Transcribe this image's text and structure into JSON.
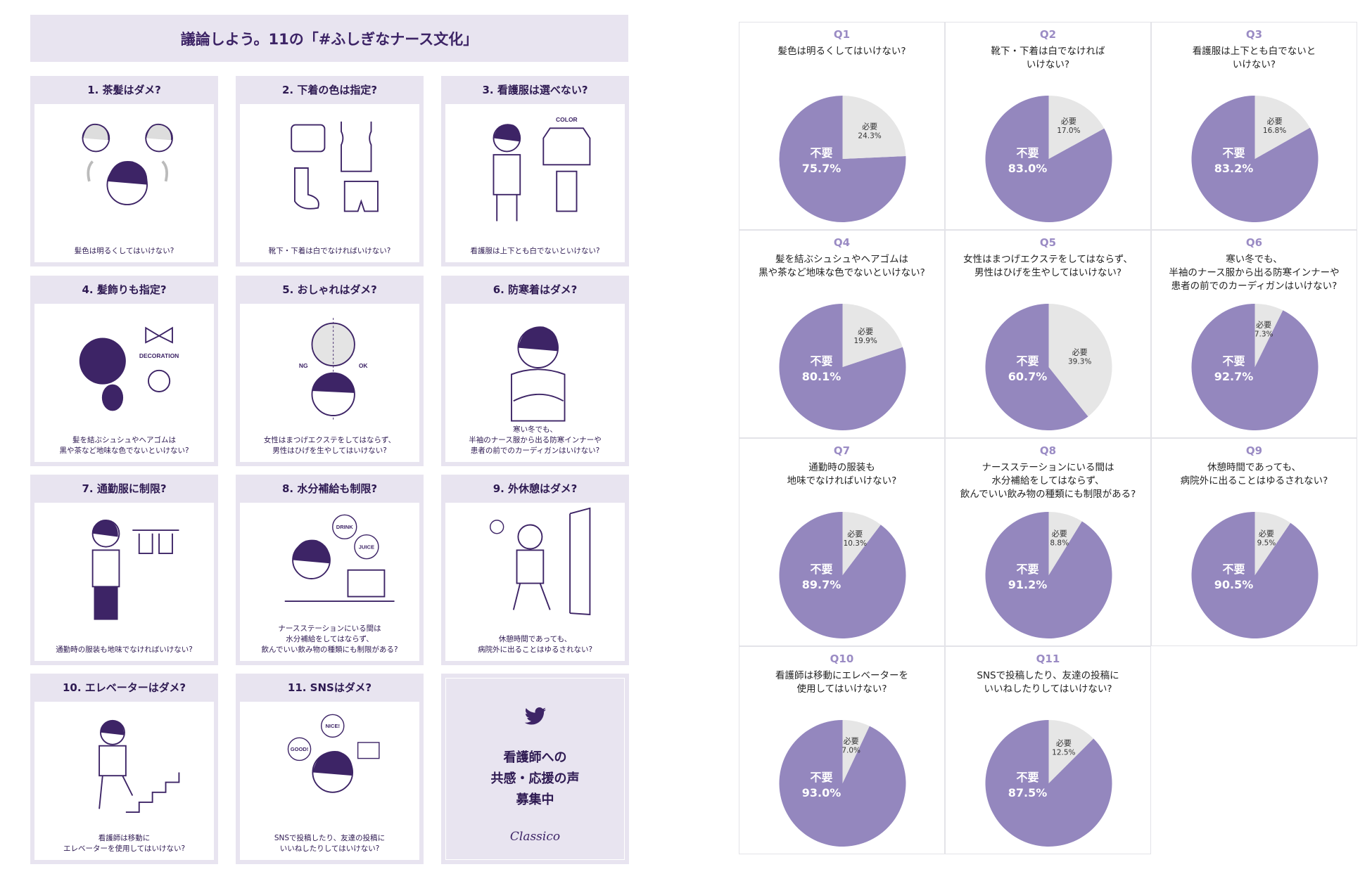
{
  "infographic": {
    "title": "議論しよう。11の「#ふしぎなナース文化」",
    "cards": [
      {
        "title": "1. 茶髪はダメ?",
        "caption": "髪色は明るくしてはいけない?"
      },
      {
        "title": "2. 下着の色は指定?",
        "caption": "靴下・下着は白でなければいけない?"
      },
      {
        "title": "3. 看護服は選べない?",
        "caption": "看護服は上下とも白でないといけない?",
        "label": "COLOR"
      },
      {
        "title": "4. 髪飾りも指定?",
        "caption": "髪を結ぶシュシュやヘアゴムは\n黒や茶など地味な色でないといけない?",
        "label": "DECORATION"
      },
      {
        "title": "5. おしゃれはダメ?",
        "caption": "女性はまつげエクステをしてはならず、\n男性はひげを生やしてはいけない?",
        "label_ng": "NG",
        "label_ok": "OK"
      },
      {
        "title": "6. 防寒着はダメ?",
        "caption": "寒い冬でも、\n半袖のナース服から出る防寒インナーや\n患者の前でのカーディガンはいけない?"
      },
      {
        "title": "7. 通勤服に制限?",
        "caption": "通勤時の服装も地味でなければいけない?"
      },
      {
        "title": "8. 水分補給も制限?",
        "caption": "ナースステーションにいる間は\n水分補給をしてはならず、\n飲んでいい飲み物の種類にも制限がある?",
        "label_drink": "DRINK",
        "label_juice": "JUICE"
      },
      {
        "title": "9. 外休憩はダメ?",
        "caption": "休憩時間であっても、\n病院外に出ることはゆるされない?"
      },
      {
        "title": "10. エレベーターはダメ?",
        "caption": "看護師は移動に\nエレベーターを使用してはいけない?"
      },
      {
        "title": "11. SNSはダメ?",
        "caption": "SNSで投稿したり、友達の投稿に\nいいねしたりしてはいけない?",
        "label_nice": "NICE!",
        "label_good": "GOOD!"
      }
    ],
    "promo": {
      "icon": "twitter-bird-icon",
      "text": "看護師への\n共感・応援の声\n募集中",
      "brand": "Classico"
    }
  },
  "colors": {
    "accent": "#3d2466",
    "pie_main": "#9487be",
    "pie_minor": "#e6e6e6",
    "panel": "#e8e4f0",
    "qlabel": "#9a8bc4"
  },
  "chart_data": [
    {
      "type": "pie",
      "title": "Q1",
      "subtitle": "髪色は明るくしてはいけない?",
      "labels": [
        "必要",
        "不要"
      ],
      "values": [
        24.3,
        75.7
      ]
    },
    {
      "type": "pie",
      "title": "Q2",
      "subtitle": "靴下・下着は白でなければ\nいけない?",
      "labels": [
        "必要",
        "不要"
      ],
      "values": [
        17.0,
        83.0
      ]
    },
    {
      "type": "pie",
      "title": "Q3",
      "subtitle": "看護服は上下とも白でないと\nいけない?",
      "labels": [
        "必要",
        "不要"
      ],
      "values": [
        16.8,
        83.2
      ]
    },
    {
      "type": "pie",
      "title": "Q4",
      "subtitle": "髪を結ぶシュシュやヘアゴムは\n黒や茶など地味な色でないといけない?",
      "labels": [
        "必要",
        "不要"
      ],
      "values": [
        19.9,
        80.1
      ]
    },
    {
      "type": "pie",
      "title": "Q5",
      "subtitle": "女性はまつげエクステをしてはならず、\n男性はひげを生やしてはいけない?",
      "labels": [
        "必要",
        "不要"
      ],
      "values": [
        39.3,
        60.7
      ]
    },
    {
      "type": "pie",
      "title": "Q6",
      "subtitle": "寒い冬でも、\n半袖のナース服から出る防寒インナーや\n患者の前でのカーディガンはいけない?",
      "labels": [
        "必要",
        "不要"
      ],
      "values": [
        7.3,
        92.7
      ]
    },
    {
      "type": "pie",
      "title": "Q7",
      "subtitle": "通勤時の服装も\n地味でなければいけない?",
      "labels": [
        "必要",
        "不要"
      ],
      "values": [
        10.3,
        89.7
      ]
    },
    {
      "type": "pie",
      "title": "Q8",
      "subtitle": "ナースステーションにいる間は\n水分補給をしてはならず、\n飲んでいい飲み物の種類にも制限がある?",
      "labels": [
        "必要",
        "不要"
      ],
      "values": [
        8.8,
        91.2
      ]
    },
    {
      "type": "pie",
      "title": "Q9",
      "subtitle": "休憩時間であっても、\n病院外に出ることはゆるされない?",
      "labels": [
        "必要",
        "不要"
      ],
      "values": [
        9.5,
        90.5
      ]
    },
    {
      "type": "pie",
      "title": "Q10",
      "subtitle": "看護師は移動にエレベーターを\n使用してはいけない?",
      "labels": [
        "必要",
        "不要"
      ],
      "values": [
        7.0,
        93.0
      ]
    },
    {
      "type": "pie",
      "title": "Q11",
      "subtitle": "SNSで投稿したり、友達の投稿に\nいいねしたりしてはいけない?",
      "labels": [
        "必要",
        "不要"
      ],
      "values": [
        12.5,
        87.5
      ]
    }
  ]
}
